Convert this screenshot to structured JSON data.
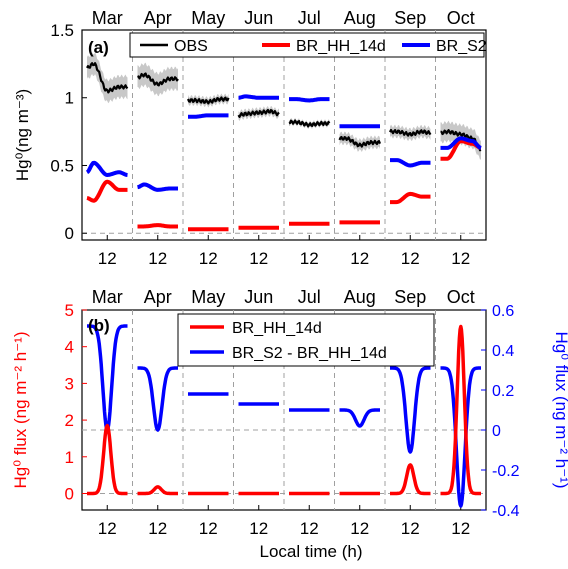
{
  "months": [
    "Mar",
    "Apr",
    "May",
    "Jun",
    "Jul",
    "Aug",
    "Sep",
    "Oct"
  ],
  "hour_tick_label": "12",
  "x_label": "Local time (h)",
  "colors": {
    "obs": "#000000",
    "hh": "#ff0000",
    "s2": "#0000ff",
    "band": "#c8c8c8",
    "dash": "#a0a0a0"
  },
  "chart_data": [
    {
      "type": "line",
      "panel_label": "(a)",
      "ylabel": "Hg⁰(ng m⁻³)",
      "ylim": [
        -0.05,
        1.5
      ],
      "yticks": [
        "0",
        "0.5",
        "1",
        "1.5"
      ],
      "legend_position": "top",
      "series": [
        {
          "name": "OBS",
          "key": "obs",
          "months": [
            {
              "start": 1.22,
              "morning_high": 1.25,
              "noon": 1.05,
              "afternoon": 1.08,
              "end": 1.08,
              "band": 0.08
            },
            {
              "start": 1.15,
              "morning_high": 1.17,
              "noon": 1.1,
              "afternoon": 1.14,
              "end": 1.14,
              "band": 0.08
            },
            {
              "start": 0.98,
              "morning_high": 0.98,
              "noon": 0.97,
              "afternoon": 0.99,
              "end": 0.99,
              "band": 0.03
            },
            {
              "start": 0.87,
              "morning_high": 0.88,
              "noon": 0.89,
              "afternoon": 0.9,
              "end": 0.88,
              "band": 0.03
            },
            {
              "start": 0.82,
              "morning_high": 0.82,
              "noon": 0.8,
              "afternoon": 0.81,
              "end": 0.81,
              "band": 0.02
            },
            {
              "start": 0.7,
              "morning_high": 0.7,
              "noon": 0.65,
              "afternoon": 0.67,
              "end": 0.67,
              "band": 0.04
            },
            {
              "start": 0.75,
              "morning_high": 0.75,
              "noon": 0.73,
              "afternoon": 0.75,
              "end": 0.74,
              "band": 0.04
            },
            {
              "start": 0.74,
              "morning_high": 0.75,
              "noon": 0.73,
              "afternoon": 0.7,
              "end": 0.62,
              "band": 0.07
            }
          ]
        },
        {
          "name": "BR_HH_14d",
          "key": "hh",
          "months": [
            {
              "start": 0.26,
              "morning_high": 0.24,
              "noon": 0.38,
              "afternoon": 0.32,
              "end": 0.32
            },
            {
              "start": 0.05,
              "morning_high": 0.05,
              "noon": 0.06,
              "afternoon": 0.05,
              "end": 0.05
            },
            {
              "start": 0.03,
              "morning_high": 0.03,
              "noon": 0.03,
              "afternoon": 0.03,
              "end": 0.03
            },
            {
              "start": 0.04,
              "morning_high": 0.04,
              "noon": 0.04,
              "afternoon": 0.04,
              "end": 0.04
            },
            {
              "start": 0.07,
              "morning_high": 0.07,
              "noon": 0.07,
              "afternoon": 0.07,
              "end": 0.07
            },
            {
              "start": 0.08,
              "morning_high": 0.08,
              "noon": 0.08,
              "afternoon": 0.08,
              "end": 0.08
            },
            {
              "start": 0.23,
              "morning_high": 0.23,
              "noon": 0.29,
              "afternoon": 0.27,
              "end": 0.27
            },
            {
              "start": 0.55,
              "morning_high": 0.55,
              "noon": 0.68,
              "afternoon": 0.66,
              "end": 0.63
            }
          ]
        },
        {
          "name": "BR_S2",
          "key": "s2",
          "months": [
            {
              "start": 0.45,
              "morning_high": 0.52,
              "noon": 0.43,
              "afternoon": 0.45,
              "end": 0.43
            },
            {
              "start": 0.34,
              "morning_high": 0.36,
              "noon": 0.32,
              "afternoon": 0.33,
              "end": 0.33
            },
            {
              "start": 0.86,
              "morning_high": 0.86,
              "noon": 0.87,
              "afternoon": 0.87,
              "end": 0.87
            },
            {
              "start": 1.0,
              "morning_high": 1.01,
              "noon": 1.0,
              "afternoon": 1.0,
              "end": 1.0
            },
            {
              "start": 0.99,
              "morning_high": 0.99,
              "noon": 0.98,
              "afternoon": 0.99,
              "end": 0.99
            },
            {
              "start": 0.79,
              "morning_high": 0.79,
              "noon": 0.79,
              "afternoon": 0.79,
              "end": 0.79
            },
            {
              "start": 0.54,
              "morning_high": 0.54,
              "noon": 0.5,
              "afternoon": 0.52,
              "end": 0.52
            },
            {
              "start": 0.63,
              "morning_high": 0.63,
              "noon": 0.7,
              "afternoon": 0.68,
              "end": 0.63
            }
          ]
        }
      ]
    },
    {
      "type": "line",
      "panel_label": "(b)",
      "ylabel_left": "Hg⁰ flux (ng m⁻² h⁻¹)",
      "ylabel_right": "Hg⁰ flux (ng m⁻² h⁻¹)",
      "ylim_left": [
        -0.45,
        5.0
      ],
      "ylim_right": [
        -0.4,
        0.6
      ],
      "yticks_left": [
        "0",
        "1",
        "2",
        "3",
        "4",
        "5"
      ],
      "yticks_right": [
        "-0.4",
        "-0.2",
        "0",
        "0.2",
        "0.4",
        "0.6"
      ],
      "legend_position": "top-center",
      "series": [
        {
          "name": "BR_HH_14d",
          "key": "hh",
          "axis": "left",
          "noon_peak": [
            1.85,
            0.18,
            0.0,
            0.0,
            0.0,
            0.0,
            0.78,
            4.55
          ]
        },
        {
          "name": "BR_S2 - BR_HH_14d",
          "key": "s2",
          "axis": "right",
          "baseline": [
            0.52,
            0.31,
            0.18,
            0.13,
            0.1,
            0.1,
            0.31,
            0.31
          ],
          "noon_value": [
            0.0,
            0.0,
            0.18,
            0.13,
            0.1,
            0.02,
            -0.11,
            -0.38
          ]
        }
      ]
    }
  ]
}
